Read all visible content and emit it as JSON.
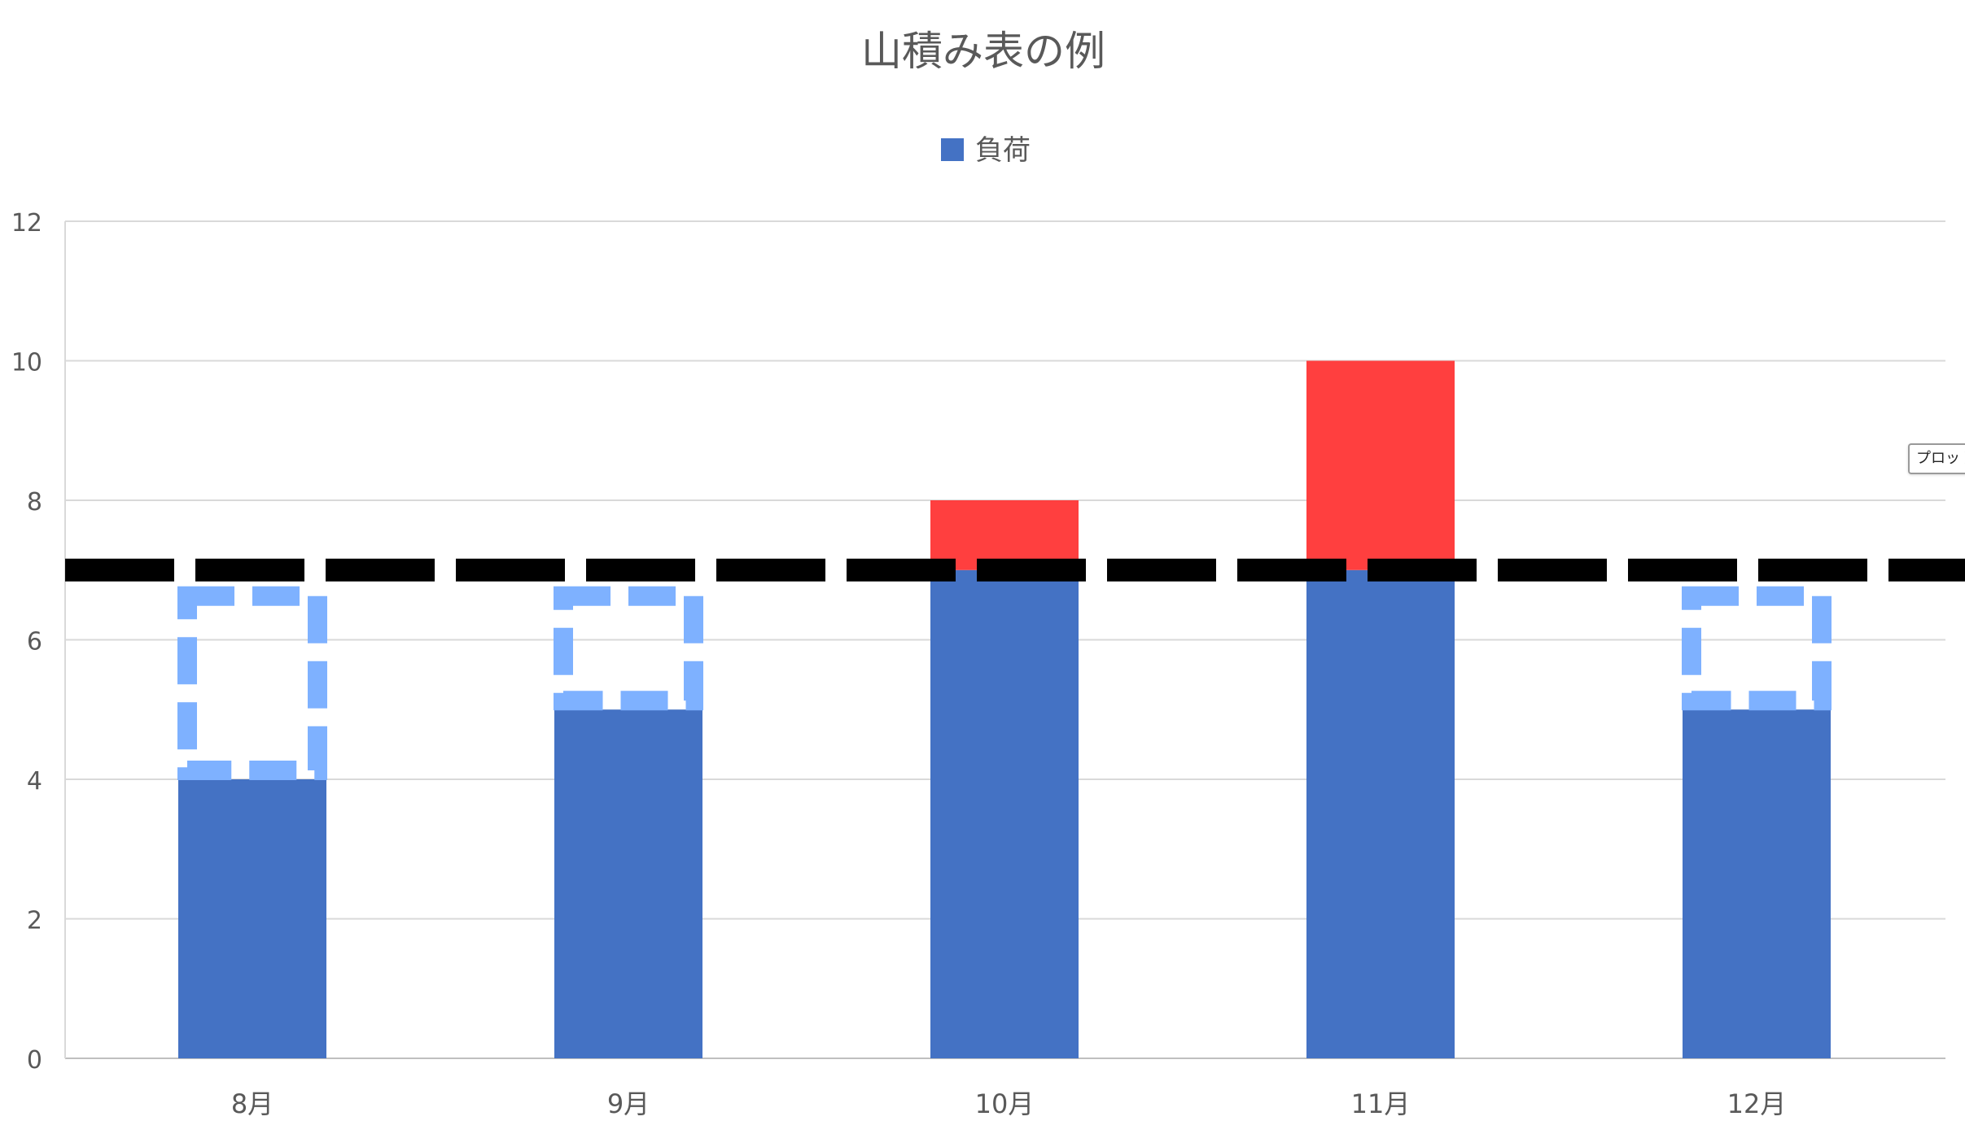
{
  "chart_data": {
    "type": "bar",
    "title": "山積み表の例",
    "xlabel": "",
    "ylabel": "",
    "categories": [
      "8月",
      "9月",
      "10月",
      "11月",
      "12月"
    ],
    "series": [
      {
        "name": "負荷",
        "values": [
          4,
          5,
          8,
          10,
          5
        ]
      }
    ],
    "capacity": 7,
    "ylim": [
      0,
      12
    ],
    "yticks": [
      "0",
      "2",
      "4",
      "6",
      "8",
      "10",
      "12"
    ],
    "grid": true,
    "legend": "top-center",
    "colors": {
      "load": "#4472C4",
      "overload": "#FF3F3F",
      "spare_outline": "#7EB1FF",
      "capacity_line": "#000000",
      "grid": "#D9D9D9",
      "axis_text": "#595959",
      "title_text": "#595959"
    }
  },
  "tooltip": {
    "text": "プロット"
  }
}
